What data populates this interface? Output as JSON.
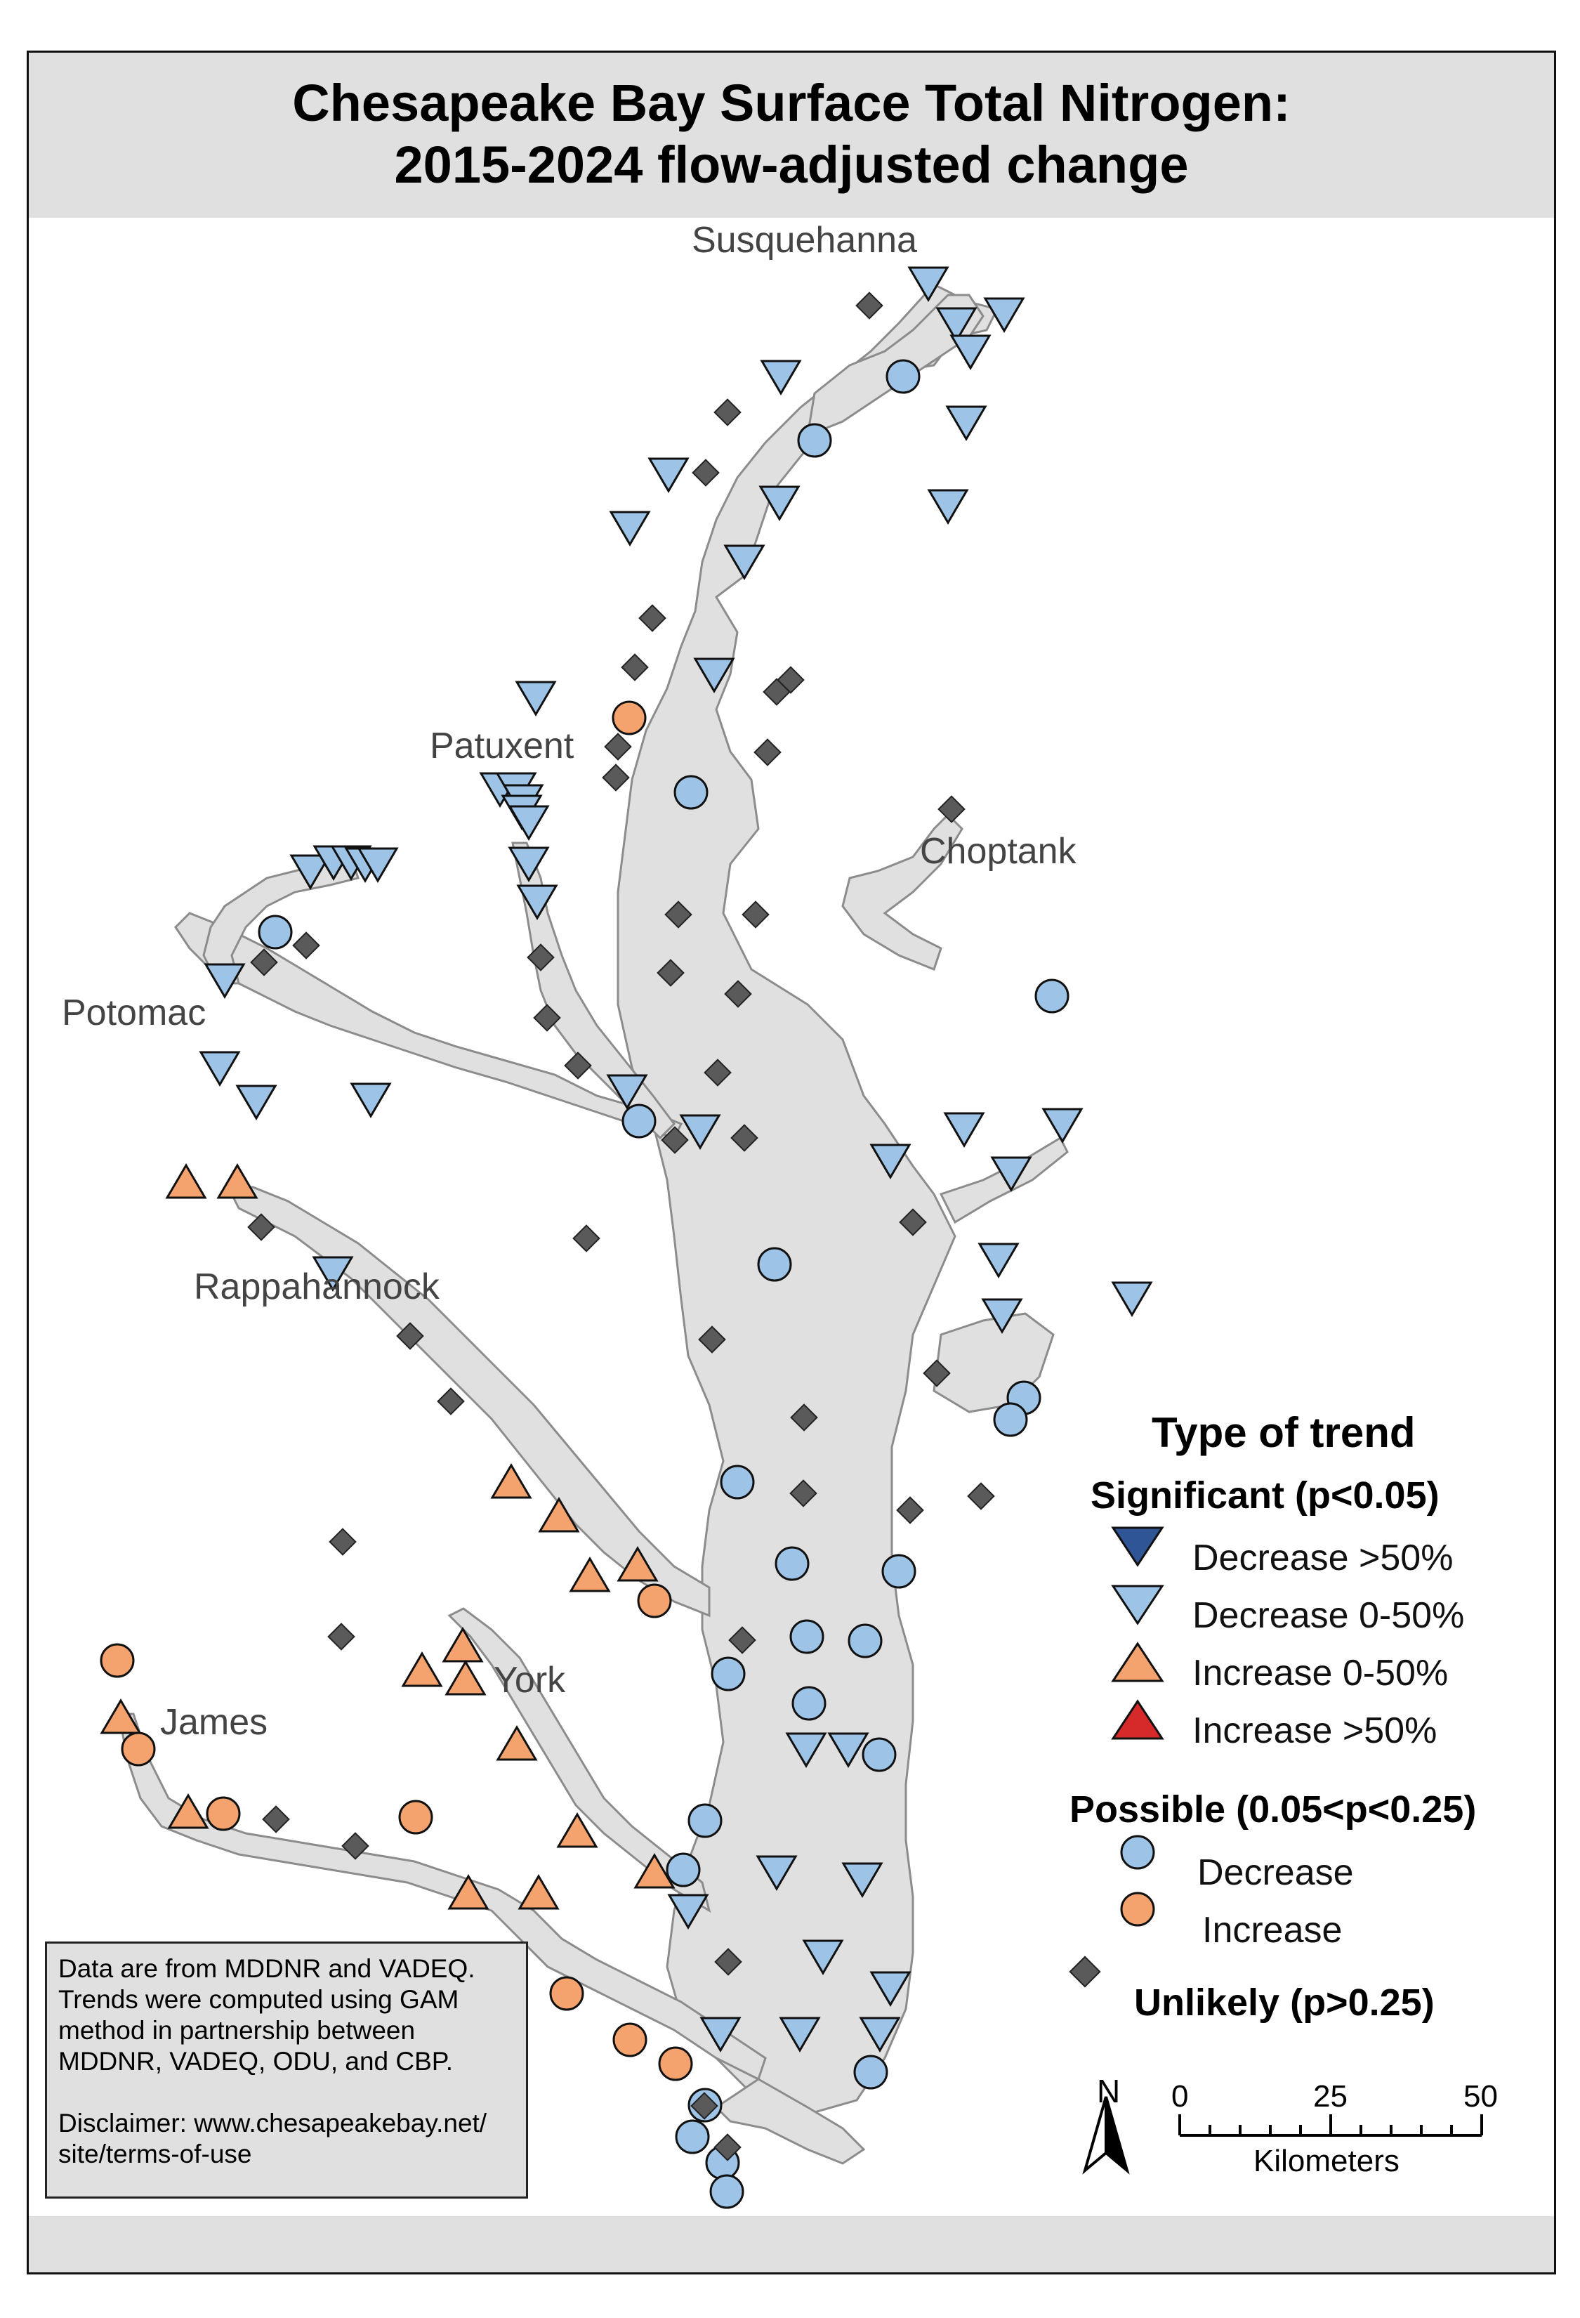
{
  "title": {
    "line1": "Chesapeake Bay Surface Total Nitrogen:",
    "line2": "2015-2024 flow-adjusted change"
  },
  "places": {
    "susquehanna": "Susquehanna",
    "patuxent": "Patuxent",
    "choptank": "Choptank",
    "potomac": "Potomac",
    "rappahannock": "Rappahannock",
    "york": "York",
    "james": "James"
  },
  "legend": {
    "heading": "Type of trend",
    "significant": "Significant (p<0.05)",
    "items_significant": [
      "Decrease >50%",
      "Decrease 0-50%",
      "Increase 0-50%",
      "Increase >50%"
    ],
    "possible": "Possible (0.05<p<0.25)",
    "items_possible": [
      "Decrease",
      "Increase"
    ],
    "unlikely": "Unlikely (p>0.25)"
  },
  "colors": {
    "water": "#e0e0e0",
    "shoreline": "#8c8c8c",
    "decrease_strong": "#2f5597",
    "decrease": "#9dc3e6",
    "increase": "#f4a26e",
    "increase_strong": "#d62a2a",
    "unlikely": "#5a5a5a",
    "band": "#e0e0e0"
  },
  "note": {
    "lines": [
      "Data are from MDDNR and VADEQ.",
      "Trends were computed using GAM",
      "method in partnership between",
      "MDDNR, VADEQ, ODU, and CBP."
    ],
    "disclaimer": [
      "Disclaimer: www.chesapeakebay.net/",
      "site/terms-of-use"
    ]
  },
  "scalebar": {
    "north": "N",
    "ticks": [
      "0",
      "25",
      "50"
    ],
    "unit": "Kilometers"
  }
}
